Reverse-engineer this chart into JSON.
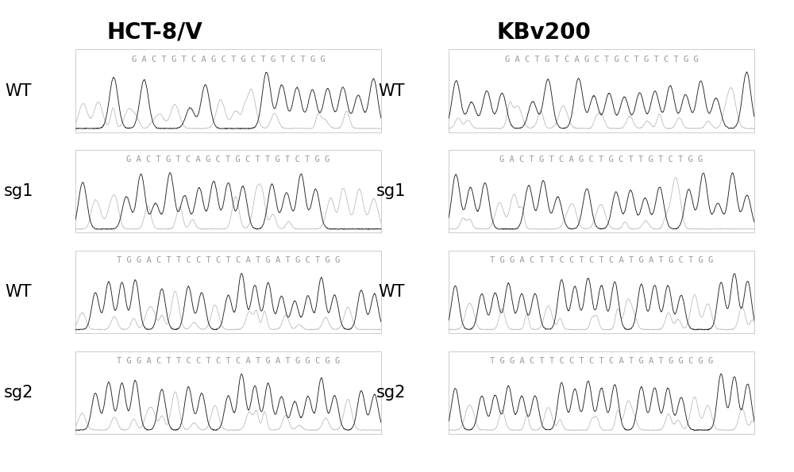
{
  "title_left": "HCT-8/V",
  "title_right": "KBv200",
  "background_color": "#ffffff",
  "rows": [
    {
      "label": "WT",
      "seq1": "GACTGTCAGCTGCTGTCTGG",
      "seq2": "GACTGTCAGCTGCTGTCTGG"
    },
    {
      "label": "sg1",
      "seq1": "GACTGTCAGCTGCTTGTCTGG",
      "seq2": "GACTGTCAGCTGCTTGTCTGG"
    },
    {
      "label": "WT",
      "seq1": "TGGACTTCCTCTCATGATGCTGG",
      "seq2": "TGGACTTCCTCTCATGATGCTGG"
    },
    {
      "label": "sg2",
      "seq1": "TGGACTTCCTCTCATGATGGCGG",
      "seq2": "TGGACTTCCTCTCATGATGGCGG"
    }
  ],
  "title_fontsize": 20,
  "label_fontsize": 15,
  "seq_fontsize": 7.5,
  "seq_color": "#999999",
  "wave_color_dark": "#222222",
  "wave_color_light": "#aaaaaa",
  "border_color": "#cccccc"
}
